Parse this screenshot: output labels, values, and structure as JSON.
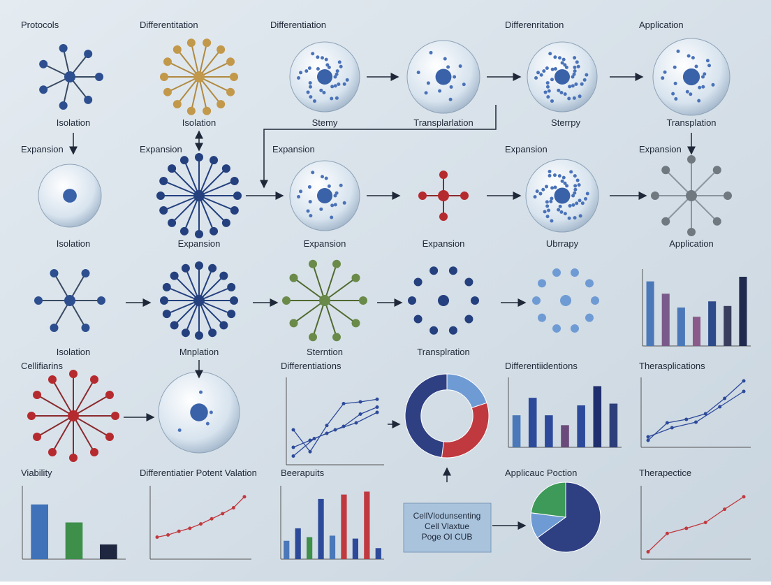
{
  "section_labels": [
    "Protocols",
    "Differentitation",
    "Differentiation",
    "Differenritation",
    "Application",
    "Expansion",
    "Expansion",
    "Expansion",
    "Expansion",
    "Expansion",
    "Cellifiarins",
    "Differentiations",
    "Differentiidentions",
    "Therasplications",
    "Viability",
    "Differentiatier Potent Valation",
    "Beerapuits",
    "Applicauc Poction",
    "Therapectice"
  ],
  "node_labels": [
    "Isolation",
    "Isolation",
    "Stemy",
    "Transplarlation",
    "Sterrpy",
    "Transplation",
    "Isolation",
    "Expansion",
    "Expansion",
    "Expansion",
    "Ubrrapy",
    "Application",
    "Isolation",
    "Mnplation",
    "Sterntion",
    "Transplration"
  ],
  "box_text": [
    "CellVlodunsenting",
    "Cell Vlaxtue",
    "Poge OI CUB"
  ],
  "charts": [
    {
      "type": "bar",
      "ylim": [
        0,
        50
      ],
      "values": [
        42,
        34,
        25,
        19,
        29,
        26,
        45
      ],
      "colors": [
        "#4a78b8",
        "#7a5a8a",
        "#4a78b8",
        "#8a5a8a",
        "#2d4a8a",
        "#3a3e5e",
        "#1f2a4e"
      ]
    },
    {
      "type": "line",
      "ylim": [
        0,
        100
      ],
      "series": [
        {
          "color": "#2d4a9a",
          "values": [
            40,
            15,
            45,
            70,
            72,
            75
          ]
        },
        {
          "color": "#2d4a9a",
          "values": [
            10,
            30,
            40,
            48,
            60
          ]
        },
        {
          "color": "#2d4a9a",
          "values": [
            20,
            28,
            36,
            44,
            58,
            66
          ]
        }
      ]
    },
    {
      "type": "donut",
      "values": [
        20,
        32,
        48
      ],
      "colors": [
        "#6f9bd4",
        "#c0393f",
        "#2e3f82"
      ]
    },
    {
      "type": "bar",
      "ylim": [
        0,
        120
      ],
      "values": [
        55,
        85,
        55,
        38,
        72,
        105,
        75
      ],
      "colors": [
        "#4a78b8",
        "#2d4a9a",
        "#2d4a9a",
        "#6a4a7a",
        "#2d4a9a",
        "#1f2f6e",
        "#2d3f7a"
      ]
    },
    {
      "type": "line",
      "ylim": [
        0,
        100
      ],
      "series": [
        {
          "color": "#2d4a9a",
          "values": [
            10,
            35,
            40,
            48,
            70,
            95
          ]
        },
        {
          "color": "#2d4a9a",
          "values": [
            15,
            28,
            36,
            58,
            80
          ]
        }
      ]
    },
    {
      "type": "bar",
      "ylim": [
        0,
        110
      ],
      "values": [
        82,
        55,
        22
      ],
      "colors": [
        "#3f72b8",
        "#3e8f4a",
        "#1f2740"
      ]
    },
    {
      "type": "line",
      "ylim": [
        0,
        100
      ],
      "series": [
        {
          "color": "#c0393f",
          "values": [
            30,
            33,
            38,
            42,
            48,
            55,
            62,
            70,
            85
          ]
        }
      ]
    },
    {
      "type": "bar",
      "ylim": [
        0,
        100
      ],
      "values": [
        25,
        42,
        30,
        82,
        32,
        88,
        28,
        92,
        15
      ],
      "colors": [
        "#4a78b8",
        "#2d4a9a",
        "#3e8f4a",
        "#2d4a9a",
        "#4a78b8",
        "#c0393f",
        "#2d4a9a",
        "#c0393f",
        "#2d4a9a"
      ]
    },
    {
      "type": "pie",
      "values": [
        65,
        12,
        23
      ],
      "colors": [
        "#2e3f82",
        "#6f9bd4",
        "#3e9a58"
      ]
    },
    {
      "type": "line",
      "ylim": [
        0,
        100
      ],
      "series": [
        {
          "color": "#c0393f",
          "values": [
            10,
            35,
            42,
            50,
            68,
            85
          ]
        }
      ]
    }
  ]
}
